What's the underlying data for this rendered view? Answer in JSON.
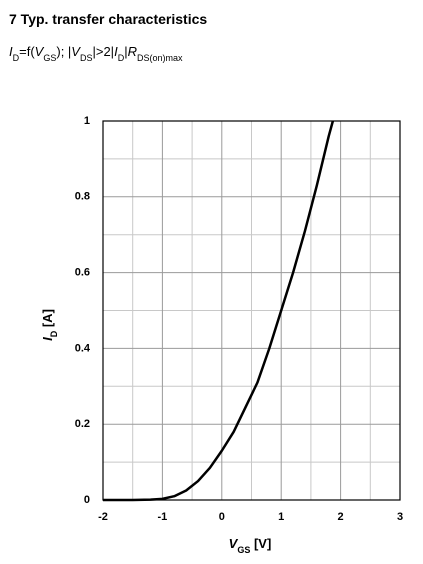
{
  "chart_data": {
    "type": "line",
    "title": "7 Typ. transfer characteristics",
    "subtitle": [
      {
        "text": "I",
        "italic": true
      },
      {
        "text": "D",
        "sub": true
      },
      {
        "text": "=f("
      },
      {
        "text": "V",
        "italic": true
      },
      {
        "text": "GS",
        "sub": true
      },
      {
        "text": "); |"
      },
      {
        "text": "V",
        "italic": true
      },
      {
        "text": "DS",
        "sub": true
      },
      {
        "text": "|>2|"
      },
      {
        "text": "I",
        "italic": true
      },
      {
        "text": "D",
        "sub": true
      },
      {
        "text": "|"
      },
      {
        "text": "R",
        "italic": true
      },
      {
        "text": "DS(on)max",
        "sub": true
      }
    ],
    "x_label": [
      {
        "text": "V",
        "italic": true
      },
      {
        "text": "GS",
        "sub": true
      },
      {
        "text": " [V]"
      }
    ],
    "y_label": [
      {
        "text": "I",
        "italic": true
      },
      {
        "text": "D",
        "sub": true
      },
      {
        "text": " [A]"
      }
    ],
    "x": [
      -2,
      -1.5,
      -1.2,
      -1,
      -0.8,
      -0.6,
      -0.4,
      -0.2,
      0,
      0.2,
      0.4,
      0.6,
      0.8,
      1,
      1.2,
      1.4,
      1.6,
      1.8,
      1.87
    ],
    "series": [
      {
        "color": "#000000",
        "values": [
          0,
          0,
          0.001,
          0.003,
          0.01,
          0.025,
          0.05,
          0.085,
          0.13,
          0.18,
          0.245,
          0.31,
          0.4,
          0.5,
          0.6,
          0.71,
          0.83,
          0.96,
          1.0
        ]
      }
    ],
    "xlim": [
      -2,
      3
    ],
    "ylim": [
      0,
      1
    ],
    "xticks": [
      -2,
      -1,
      0,
      1,
      2,
      3
    ],
    "yticks": [
      0,
      0.2,
      0.4,
      0.6,
      0.8,
      1
    ],
    "xminor": [
      -1.5,
      -0.5,
      0.5,
      1.5,
      2.5
    ],
    "yminor": [
      0.1,
      0.3,
      0.5,
      0.7,
      0.9
    ],
    "grid": true
  }
}
